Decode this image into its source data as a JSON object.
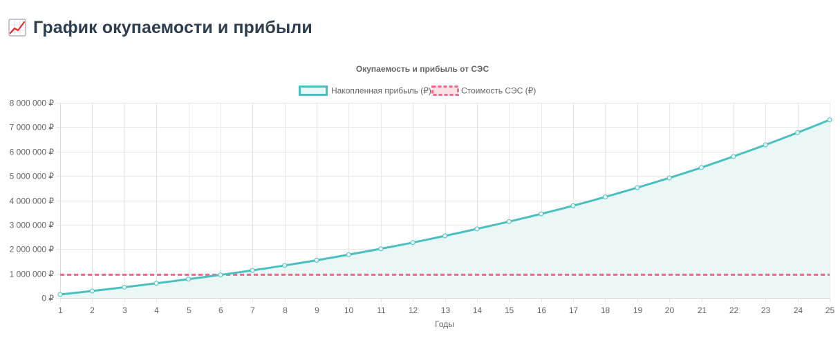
{
  "header": {
    "icon": "chart-increasing-icon",
    "title": "График окупаемости и прибыли"
  },
  "chart_data": {
    "type": "line",
    "title": "Окупаемость и прибыль от СЭС",
    "xlabel": "Годы",
    "ylabel": "",
    "x": [
      1,
      2,
      3,
      4,
      5,
      6,
      7,
      8,
      9,
      10,
      11,
      12,
      13,
      14,
      15,
      16,
      17,
      18,
      19,
      20,
      21,
      22,
      23,
      24,
      25
    ],
    "ylim": [
      0,
      8000000
    ],
    "yticks": [
      0,
      1000000,
      2000000,
      3000000,
      4000000,
      5000000,
      6000000,
      7000000,
      8000000
    ],
    "ytick_labels": [
      "0 ₽",
      "1 000 000 ₽",
      "2 000 000 ₽",
      "3 000 000 ₽",
      "4 000 000 ₽",
      "5 000 000 ₽",
      "6 000 000 ₽",
      "7 000 000 ₽",
      "8 000 000 ₽"
    ],
    "grid": true,
    "legend_position": "top-center",
    "series": [
      {
        "name": "Накопленная прибыль (₽)",
        "style": "line-filled-points",
        "color": "#4bbfbf",
        "fill": "#e9f7f7",
        "values": [
          140000,
          285000,
          440000,
          600000,
          770000,
          945000,
          1130000,
          1330000,
          1545000,
          1775000,
          2015000,
          2270000,
          2545000,
          2830000,
          3130000,
          3445000,
          3780000,
          4140000,
          4520000,
          4920000,
          5345000,
          5800000,
          6275000,
          6775000,
          7300000
        ]
      },
      {
        "name": "Стоимость СЭС (₽)",
        "style": "dashed",
        "color": "#f2688a",
        "fill": "#fbe1e6",
        "values": [
          950000,
          950000,
          950000,
          950000,
          950000,
          950000,
          950000,
          950000,
          950000,
          950000,
          950000,
          950000,
          950000,
          950000,
          950000,
          950000,
          950000,
          950000,
          950000,
          950000,
          950000,
          950000,
          950000,
          950000,
          950000
        ]
      }
    ]
  }
}
